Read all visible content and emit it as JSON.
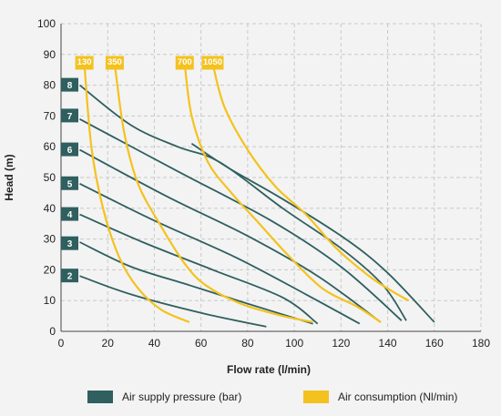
{
  "chart_data": {
    "type": "line",
    "xlabel": "Flow rate (l/min)",
    "ylabel": "Head (m)",
    "xlim": [
      0,
      180
    ],
    "ylim": [
      0,
      100
    ],
    "xticks": [
      0,
      20,
      40,
      60,
      80,
      100,
      120,
      140,
      160,
      180
    ],
    "yticks": [
      0,
      10,
      20,
      30,
      40,
      50,
      60,
      70,
      80,
      90,
      100
    ],
    "grid": true,
    "colors": {
      "pressure": "#2f5f5f",
      "air": "#f4c21e",
      "grid": "#c9c9c9",
      "background": "#f3f3f3"
    },
    "pressure_series": [
      {
        "name": "2",
        "points": [
          [
            8,
            18
          ],
          [
            30,
            12
          ],
          [
            60,
            6
          ],
          [
            88,
            1.5
          ]
        ]
      },
      {
        "name": "3",
        "points": [
          [
            8,
            29
          ],
          [
            30,
            21
          ],
          [
            55,
            15
          ],
          [
            80,
            9
          ],
          [
            108,
            2.5
          ]
        ]
      },
      {
        "name": "4",
        "points": [
          [
            8,
            38
          ],
          [
            35,
            29
          ],
          [
            65,
            20
          ],
          [
            95,
            11
          ],
          [
            110,
            2.5
          ]
        ]
      },
      {
        "name": "5",
        "points": [
          [
            8,
            48
          ],
          [
            40,
            36
          ],
          [
            75,
            24
          ],
          [
            105,
            12
          ],
          [
            128,
            2.5
          ]
        ]
      },
      {
        "name": "6",
        "points": [
          [
            8,
            59
          ],
          [
            45,
            44
          ],
          [
            80,
            31
          ],
          [
            110,
            18
          ],
          [
            137,
            3
          ]
        ]
      },
      {
        "name": "7",
        "points": [
          [
            8,
            69
          ],
          [
            50,
            52
          ],
          [
            90,
            36
          ],
          [
            120,
            21
          ],
          [
            146,
            3.5
          ]
        ]
      },
      {
        "name": "8",
        "points": [
          [
            8,
            80
          ],
          [
            30,
            67
          ],
          [
            50,
            60
          ],
          [
            68,
            55
          ],
          [
            95,
            40
          ],
          [
            120,
            27
          ],
          [
            138,
            15
          ],
          [
            148,
            3.5
          ]
        ]
      },
      {
        "name": "",
        "points": [
          [
            56,
            61
          ],
          [
            72,
            53
          ],
          [
            95,
            43
          ],
          [
            122,
            30
          ],
          [
            140,
            19
          ],
          [
            160,
            3
          ]
        ]
      }
    ],
    "air_series": [
      {
        "name": "130",
        "points": [
          [
            10,
            87
          ],
          [
            13,
            60
          ],
          [
            18,
            40
          ],
          [
            25,
            24
          ],
          [
            33,
            14
          ],
          [
            43,
            7
          ],
          [
            55,
            3
          ]
        ]
      },
      {
        "name": "350",
        "points": [
          [
            23,
            87
          ],
          [
            27,
            65
          ],
          [
            33,
            48
          ],
          [
            43,
            34
          ],
          [
            53,
            22
          ],
          [
            62,
            15
          ],
          [
            77,
            9
          ],
          [
            95,
            5
          ],
          [
            108,
            3
          ]
        ]
      },
      {
        "name": "700",
        "points": [
          [
            53,
            87
          ],
          [
            56,
            70
          ],
          [
            63,
            55
          ],
          [
            73,
            45
          ],
          [
            85,
            35
          ],
          [
            97,
            25
          ],
          [
            112,
            14
          ],
          [
            127,
            8
          ],
          [
            137,
            3
          ]
        ]
      },
      {
        "name": "1050",
        "points": [
          [
            65,
            87
          ],
          [
            70,
            73
          ],
          [
            80,
            59
          ],
          [
            92,
            47
          ],
          [
            105,
            38
          ],
          [
            118,
            27
          ],
          [
            132,
            18
          ],
          [
            142,
            13
          ],
          [
            149,
            10
          ]
        ]
      }
    ],
    "pressure_labels": [
      "8",
      "7",
      "6",
      "5",
      "4",
      "3",
      "2"
    ],
    "air_labels": [
      "130",
      "350",
      "700",
      "1050"
    ]
  },
  "legend": {
    "pressure": "Air supply pressure (bar)",
    "air": "Air consumption (Nl/min)"
  }
}
